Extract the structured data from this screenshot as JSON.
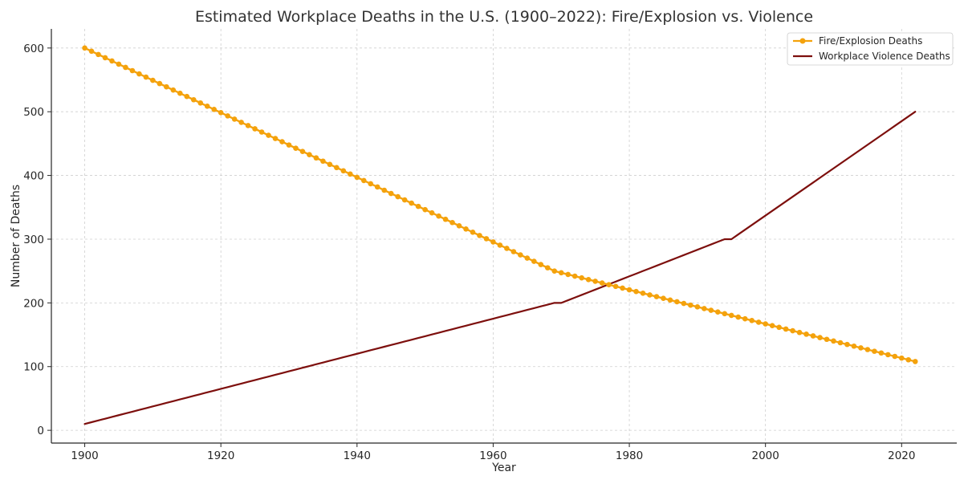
{
  "chart_data": {
    "type": "line",
    "title": "Estimated Workplace Deaths in the U.S. (1900–2022): Fire/Explosion vs. Violence",
    "xlabel": "Year",
    "ylabel": "Number of Deaths",
    "xlim": [
      1895.1,
      2028.1
    ],
    "ylim": [
      -20,
      630
    ],
    "x_ticks": [
      1900,
      1920,
      1940,
      1960,
      1980,
      2000,
      2020
    ],
    "y_ticks": [
      0,
      100,
      200,
      300,
      400,
      500,
      600
    ],
    "grid": true,
    "grid_style": "dashed",
    "legend_position": "top-right",
    "x_range": [
      1900,
      2022
    ],
    "series": [
      {
        "name": "Fire/Explosion Deaths",
        "color": "#F4A20C",
        "marker": "circle",
        "segments": [
          {
            "from": [
              1900,
              600
            ],
            "to": [
              1969,
              250
            ]
          },
          {
            "from": [
              1969,
              250
            ],
            "to": [
              2022,
              108
            ]
          }
        ]
      },
      {
        "name": "Workplace Violence Deaths",
        "color": "#7D0F0D",
        "marker": "none",
        "segments": [
          {
            "from": [
              1900,
              10
            ],
            "to": [
              1969,
              200
            ]
          },
          {
            "from": [
              1969,
              200
            ],
            "to": [
              1970,
              200
            ]
          },
          {
            "from": [
              1970,
              200
            ],
            "to": [
              1994,
              300
            ]
          },
          {
            "from": [
              1994,
              300
            ],
            "to": [
              1995,
              300
            ]
          },
          {
            "from": [
              1995,
              300
            ],
            "to": [
              2022,
              500
            ]
          }
        ]
      }
    ]
  }
}
